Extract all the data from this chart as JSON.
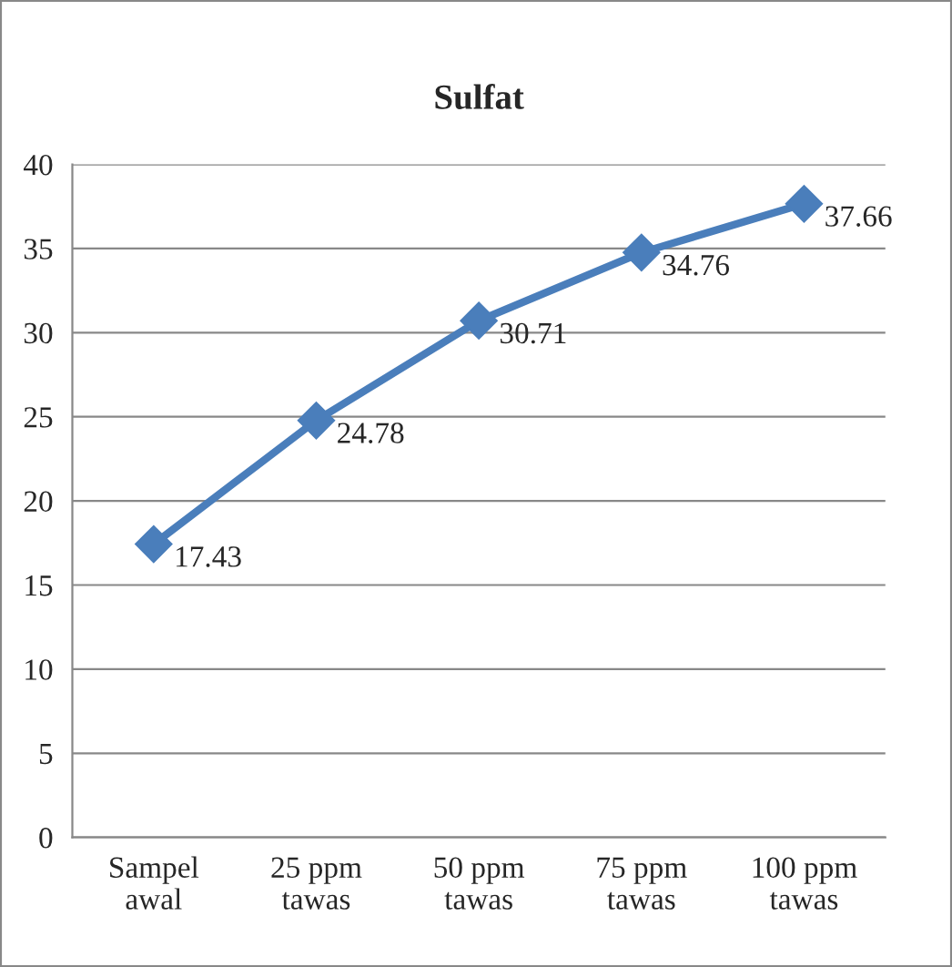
{
  "chart_data": {
    "type": "line",
    "title": "Sulfat",
    "categories": [
      "Sampel\nawal",
      "25 ppm\ntawas",
      "50 ppm\ntawas",
      "75 ppm\ntawas",
      "100 ppm\ntawas"
    ],
    "series": [
      {
        "color": "#4a7ebb",
        "values": [
          17.43,
          24.78,
          30.71,
          34.76,
          37.66
        ]
      }
    ],
    "ylim": [
      0,
      40
    ],
    "yticks": [
      0,
      5,
      10,
      15,
      20,
      25,
      30,
      35,
      40
    ],
    "grid": "y",
    "legend": false,
    "marker": "diamond",
    "line_style": "solid",
    "data_labels": true
  }
}
